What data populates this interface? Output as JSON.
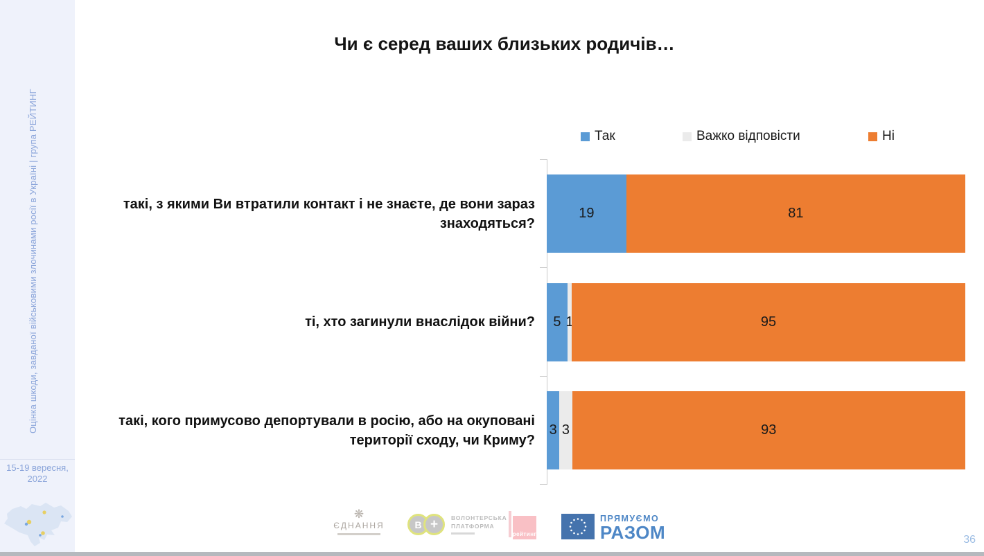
{
  "sidebar": {
    "vertical_text": "Оцінка шкоди, завданої військовими злочинами росії в Україні | група РЕЙТИНГ",
    "date_line1": "15-19 вересня,",
    "date_line2": "2022"
  },
  "header": {
    "title": "Чи є серед ваших близьких родичів…"
  },
  "chart_data": {
    "type": "bar",
    "orientation": "horizontal",
    "stacked": true,
    "units": "percent",
    "xlim": [
      0,
      100
    ],
    "grid": false,
    "legend_position": "top",
    "value_labels": true,
    "categories": [
      "такі, з якими Ви втратили контакт і не знаєте, де вони зараз знаходяться?",
      "ті, хто загинули внаслідок війни?",
      "такі, кого примусово депортували в росію, або на окуповані території сходу, чи Криму?"
    ],
    "series": [
      {
        "name": "Так",
        "color": "#5b9bd5",
        "values": [
          19,
          5,
          3
        ]
      },
      {
        "name": "Важко відповісти",
        "color": "#ebebeb",
        "values": [
          0,
          1,
          3
        ]
      },
      {
        "name": "Ні",
        "color": "#ed7d31",
        "values": [
          81,
          95,
          93
        ]
      }
    ]
  },
  "footer": {
    "logos": {
      "ednannia": {
        "name": "ЄДНАННЯ"
      },
      "volunteer": {
        "letter1": "В",
        "letter2": "+",
        "line1": "ВОЛОНТЕРСЬКА",
        "line2": "ПЛАТФОРМА"
      },
      "rating": {
        "name": "рейтинг"
      },
      "eu": {
        "line1": "ПРЯМУЄМО",
        "line2": "РАЗОМ"
      }
    },
    "page_number": "36"
  },
  "colors": {
    "sidebar_bg": "#eff2fb",
    "sidebar_text": "#8ba5da",
    "bar_yes": "#5b9bd5",
    "bar_dk": "#ebebeb",
    "bar_no": "#ed7d31",
    "eu_flag_blue": "#4573ad",
    "rating_pink": "#f9c0c5",
    "bottom_strip": "#b6b9be",
    "page_number": "#9cbde4"
  }
}
